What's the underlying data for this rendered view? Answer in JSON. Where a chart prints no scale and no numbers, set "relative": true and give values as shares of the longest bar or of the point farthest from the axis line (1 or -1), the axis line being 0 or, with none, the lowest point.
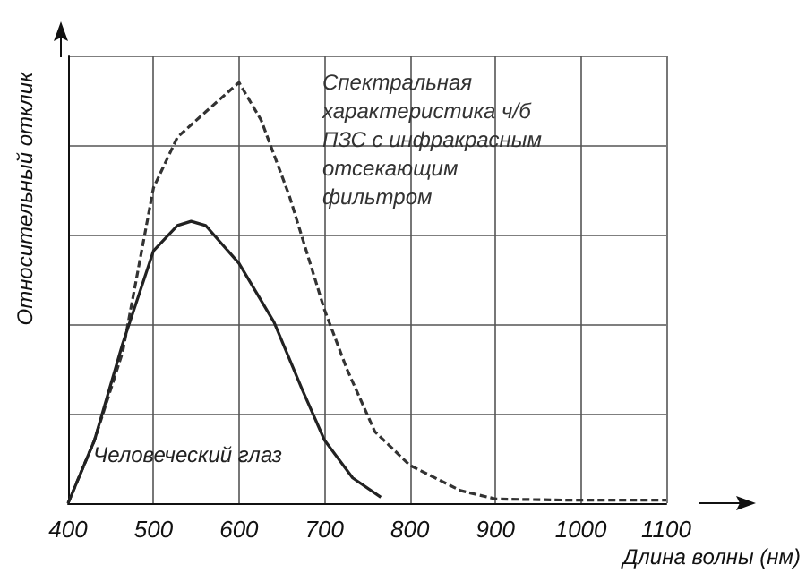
{
  "chart_data": {
    "type": "line",
    "relative": true,
    "xlabel": "Длина волны (нм)",
    "ylabel": "Относительный отклик",
    "xlim": [
      400,
      1100
    ],
    "xticks": [
      400,
      500,
      600,
      700,
      800,
      900,
      1000,
      1100
    ],
    "grid": true,
    "legend": false,
    "marker": "none",
    "series": [
      {
        "name": "Спектральная характеристика ч/б ПЗС с инфракрасным отсекающим фильтром",
        "color": "#333333",
        "line_style": "dashed",
        "x": [
          400,
          431,
          464,
          500,
          528,
          561,
          600,
          626,
          659,
          700,
          726,
          759,
          800,
          859,
          900,
          990,
          1100
        ],
        "values": [
          0,
          0.15,
          0.36,
          0.75,
          0.87,
          0.93,
          1,
          0.91,
          0.73,
          0.46,
          0.32,
          0.17,
          0.09,
          0.03,
          0.01,
          0.007,
          0.007
        ]
      },
      {
        "name": "Человеческий глаз",
        "color": "#222222",
        "line_style": "solid",
        "x": [
          400,
          431,
          464,
          500,
          528,
          544,
          561,
          600,
          641,
          674,
          700,
          733,
          766
        ],
        "values": [
          0,
          0.15,
          0.38,
          0.6,
          0.66,
          0.67,
          0.66,
          0.57,
          0.43,
          0.27,
          0.15,
          0.06,
          0.014
        ]
      }
    ]
  }
}
